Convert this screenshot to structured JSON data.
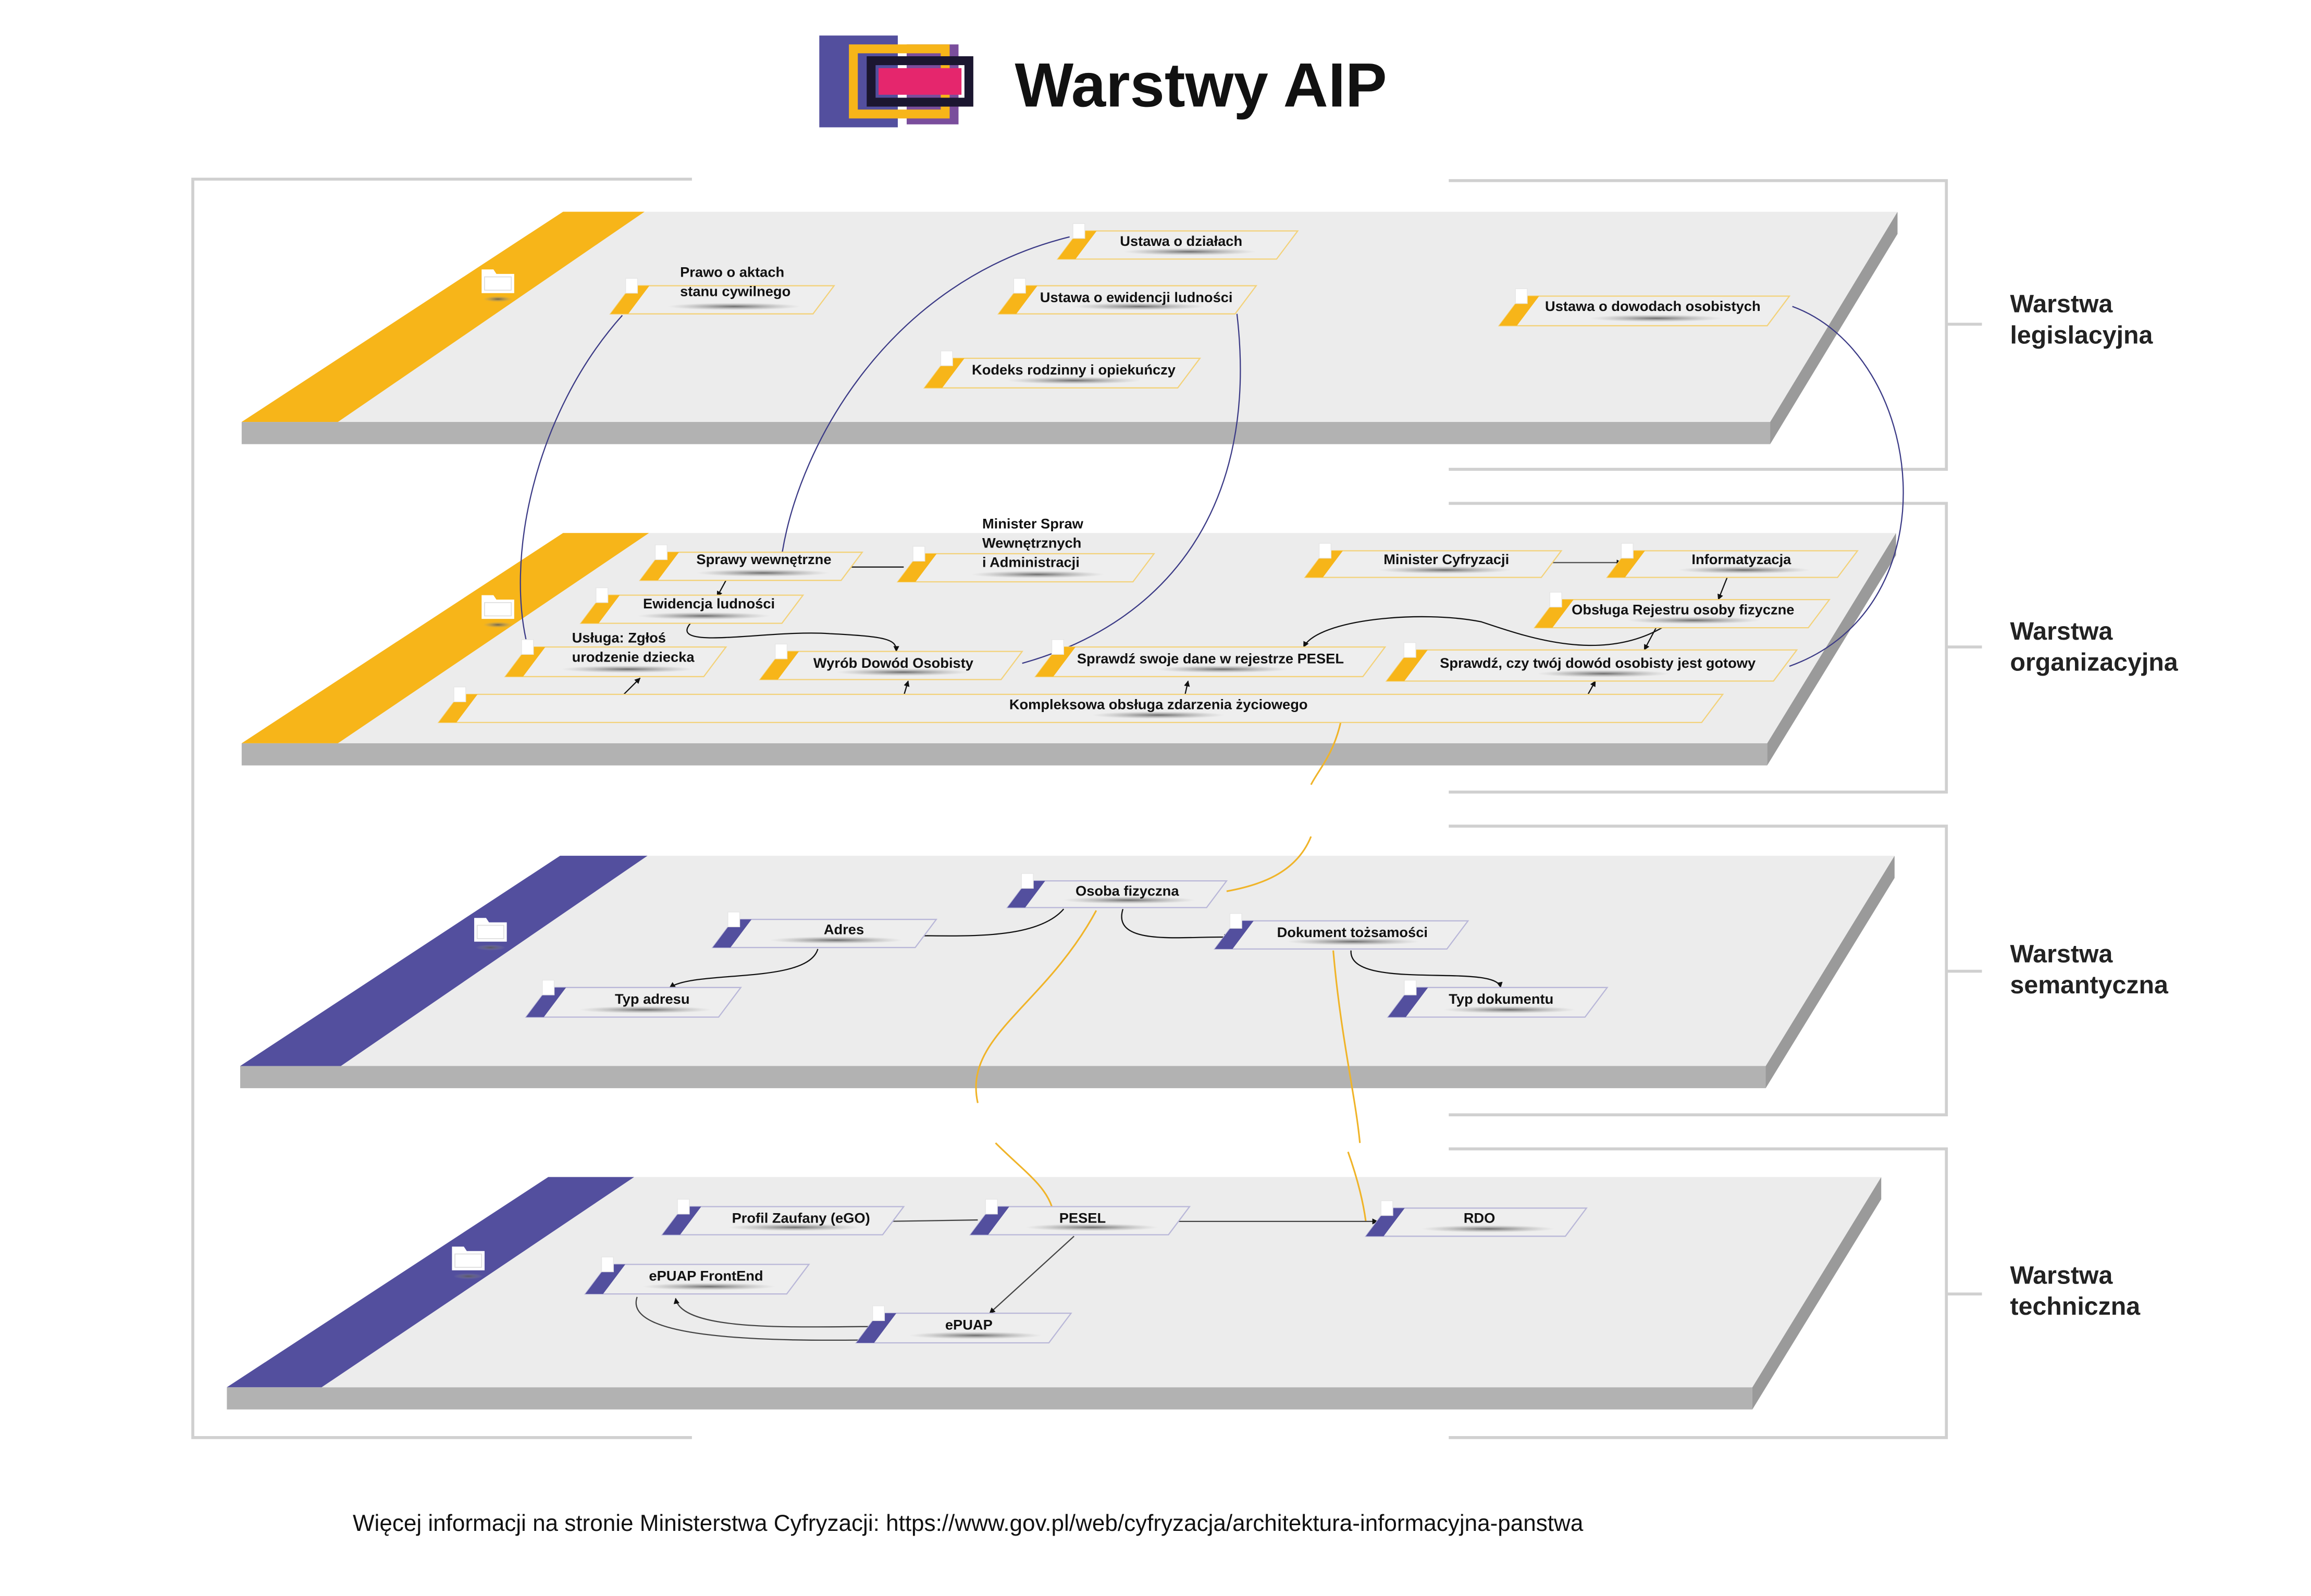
{
  "header": {
    "title": "Warstwy AIP"
  },
  "colors": {
    "legislative": "#f7b519",
    "semantic": "#534f9e",
    "surface": "#ececec",
    "edge": "#b0b0b0",
    "link_blue": "#3b3a86",
    "link_yellow": "#f0b429"
  },
  "layers": [
    {
      "id": "leg",
      "label": [
        "Warstwa",
        "legislacyjna"
      ],
      "color": "#f7b519",
      "icon": "folder-icon",
      "nodes": [
        {
          "id": "prawo",
          "lines": [
            "Prawo o aktach",
            "stanu cywilnego"
          ]
        },
        {
          "id": "dzialach",
          "lines": [
            "Ustawa o działach"
          ]
        },
        {
          "id": "ewid",
          "lines": [
            "Ustawa o ewidencji ludności"
          ]
        },
        {
          "id": "kodeks",
          "lines": [
            "Kodeks rodzinny i opiekuńczy"
          ]
        },
        {
          "id": "dowody",
          "lines": [
            "Ustawa o dowodach osobistych"
          ]
        }
      ]
    },
    {
      "id": "org",
      "label": [
        "Warstwa",
        "organizacyjna"
      ],
      "color": "#f7b519",
      "icon": "folder-icon",
      "nodes": [
        {
          "id": "sprawy",
          "lines": [
            "Sprawy wewnętrzne"
          ]
        },
        {
          "id": "mswia",
          "lines": [
            "Minister Spraw",
            "Wewnętrznych",
            "i Administracji"
          ]
        },
        {
          "id": "mc",
          "lines": [
            "Minister Cyfryzacji"
          ]
        },
        {
          "id": "inf",
          "lines": [
            "Informatyzacja"
          ]
        },
        {
          "id": "ewl",
          "lines": [
            "Ewidencja ludności"
          ]
        },
        {
          "id": "obs",
          "lines": [
            "Obsługa Rejestru osoby fizyczne"
          ]
        },
        {
          "id": "usl",
          "lines": [
            "Usługa: Zgłoś",
            "urodzenie dziecka"
          ]
        },
        {
          "id": "wyrob",
          "lines": [
            "Wyrób Dowód Osobisty"
          ]
        },
        {
          "id": "spr1",
          "lines": [
            "Sprawdź swoje dane w rejestrze PESEL"
          ]
        },
        {
          "id": "spr2",
          "lines": [
            "Sprawdź, czy twój dowód osobisty jest gotowy"
          ]
        },
        {
          "id": "komp",
          "lines": [
            "Kompleksowa obsługa zdarzenia życiowego"
          ]
        }
      ]
    },
    {
      "id": "sem",
      "label": [
        "Warstwa",
        "semantyczna"
      ],
      "color": "#534f9e",
      "icon": "folder-icon",
      "nodes": [
        {
          "id": "osoba",
          "lines": [
            "Osoba fizyczna"
          ]
        },
        {
          "id": "adres",
          "lines": [
            "Adres"
          ]
        },
        {
          "id": "dok",
          "lines": [
            "Dokument tożsamości"
          ]
        },
        {
          "id": "typadr",
          "lines": [
            "Typ adresu"
          ]
        },
        {
          "id": "typdok",
          "lines": [
            "Typ dokumentu"
          ]
        }
      ]
    },
    {
      "id": "tech",
      "label": [
        "Warstwa",
        "techniczna"
      ],
      "color": "#534f9e",
      "icon": "folder-icon",
      "nodes": [
        {
          "id": "pz",
          "lines": [
            "Profil Zaufany (eGO)"
          ]
        },
        {
          "id": "pesel",
          "lines": [
            "PESEL"
          ]
        },
        {
          "id": "rdo",
          "lines": [
            "RDO"
          ]
        },
        {
          "id": "epf",
          "lines": [
            "ePUAP FrontEnd"
          ]
        },
        {
          "id": "epuap",
          "lines": [
            "ePUAP"
          ]
        }
      ]
    }
  ],
  "footer": {
    "text": "Więcej informacji na stronie Ministerstwa Cyfryzacji: https://www.gov.pl/web/cyfryzacja/architektura-informacyjna-panstwa"
  }
}
